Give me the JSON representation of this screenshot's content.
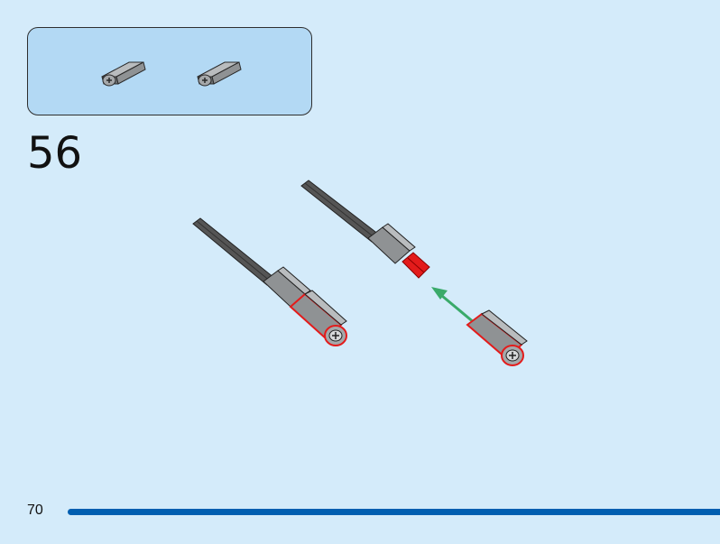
{
  "step": {
    "number": "56"
  },
  "parts_callout": {
    "items": [
      {
        "part": "axle-connector-grey",
        "color": "#8f9294"
      },
      {
        "part": "axle-connector-grey",
        "color": "#8f9294"
      }
    ]
  },
  "page": {
    "number": "70",
    "accent_color": "#005eb0"
  },
  "colors": {
    "background": "#d4ebfa",
    "callout_fill": "#b3d9f4",
    "highlight": "#e31b1b",
    "arrow": "#3aaa6a",
    "axle": "#4a4a4a",
    "connector": "#8f9294"
  },
  "icons": [
    "axle-connector-icon",
    "assembled-axle-icon",
    "insert-arrow-icon"
  ]
}
